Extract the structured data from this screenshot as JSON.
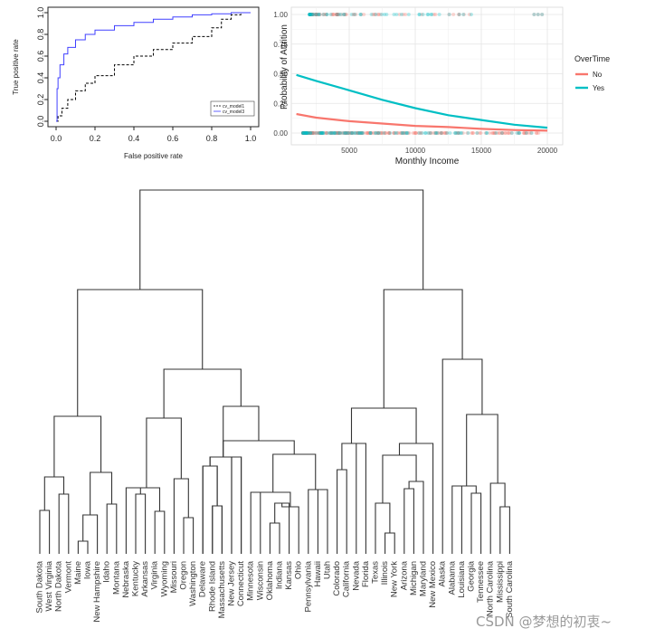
{
  "chart_data": [
    {
      "type": "line",
      "xlabel": "False positive rate",
      "ylabel": "True positive rate",
      "xlim": [
        0,
        1
      ],
      "ylim": [
        0,
        1
      ],
      "xticks": [
        "0.0",
        "0.2",
        "0.4",
        "0.6",
        "0.8",
        "1.0"
      ],
      "yticks": [
        "0.0",
        "0.2",
        "0.4",
        "0.6",
        "0.8",
        "1.0"
      ],
      "grid": false,
      "legend_position": "bottom-right",
      "series": [
        {
          "name": "cv_model1",
          "color": "#000000",
          "style": "dashed",
          "x": [
            0,
            0.01,
            0.03,
            0.06,
            0.1,
            0.15,
            0.2,
            0.3,
            0.4,
            0.5,
            0.6,
            0.7,
            0.8,
            0.85,
            0.9,
            0.95,
            1.0
          ],
          "y": [
            0,
            0.05,
            0.12,
            0.2,
            0.28,
            0.35,
            0.42,
            0.52,
            0.6,
            0.66,
            0.72,
            0.78,
            0.86,
            0.94,
            0.98,
            1.0,
            1.0
          ]
        },
        {
          "name": "cv_model3",
          "color": "#4040ff",
          "style": "solid",
          "x": [
            0,
            0.005,
            0.01,
            0.02,
            0.04,
            0.06,
            0.1,
            0.15,
            0.2,
            0.3,
            0.4,
            0.5,
            0.6,
            0.7,
            0.8,
            0.9,
            1.0
          ],
          "y": [
            0,
            0.3,
            0.4,
            0.52,
            0.62,
            0.68,
            0.75,
            0.8,
            0.84,
            0.88,
            0.91,
            0.94,
            0.96,
            0.98,
            0.99,
            1.0,
            1.0
          ]
        }
      ]
    },
    {
      "type": "line",
      "xlabel": "Monthly Income",
      "ylabel": "Probability of Attrition",
      "xlim": [
        0,
        20000
      ],
      "ylim": [
        0,
        1
      ],
      "xticks": [
        "5000",
        "10000",
        "15000",
        "20000"
      ],
      "yticks": [
        "0.00",
        "0.25",
        "0.50",
        "0.75",
        "1.00"
      ],
      "grid": true,
      "legend_title": "OverTime",
      "legend_position": "right",
      "series": [
        {
          "name": "No",
          "color": "#f8766d",
          "x": [
            1000,
            2500,
            5000,
            7500,
            10000,
            12500,
            15000,
            17500,
            20000
          ],
          "y": [
            0.16,
            0.13,
            0.1,
            0.08,
            0.06,
            0.05,
            0.035,
            0.025,
            0.02
          ]
        },
        {
          "name": "Yes",
          "color": "#00bfc4",
          "x": [
            1000,
            2500,
            5000,
            7500,
            10000,
            12500,
            15000,
            17500,
            20000
          ],
          "y": [
            0.49,
            0.44,
            0.36,
            0.28,
            0.21,
            0.15,
            0.11,
            0.07,
            0.045
          ]
        }
      ]
    },
    {
      "type": "dendrogram",
      "leaves": [
        "South Dakota",
        "West Virginia",
        "North Dakota",
        "Vermont",
        "Maine",
        "Iowa",
        "New Hampshire",
        "Idaho",
        "Montana",
        "Nebraska",
        "Kentucky",
        "Arkansas",
        "Virginia",
        "Wyoming",
        "Missouri",
        "Oregon",
        "Washington",
        "Delaware",
        "Rhode Island",
        "Massachusetts",
        "New Jersey",
        "Connecticut",
        "Minnesota",
        "Wisconsin",
        "Oklahoma",
        "Indiana",
        "Kansas",
        "Ohio",
        "Pennsylvania",
        "Hawaii",
        "Utah",
        "Colorado",
        "California",
        "Nevada",
        "Florida",
        "Texas",
        "Illinois",
        "New York",
        "Arizona",
        "Michigan",
        "Maryland",
        "New Mexico",
        "Alaska",
        "Alabama",
        "Louisiana",
        "Georgia",
        "Tennessee",
        "North Carolina",
        "Mississippi",
        "South Carolina"
      ]
    }
  ],
  "watermark": "CSDN @梦想的初衷~"
}
